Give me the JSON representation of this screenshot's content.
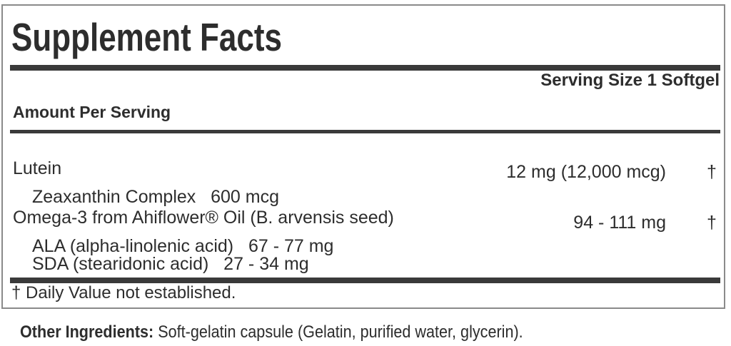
{
  "panel": {
    "title": "Supplement Facts",
    "serving_size": "Serving Size 1 Softgel",
    "amount_header": "Amount Per Serving",
    "rows": [
      {
        "name": "Lutein",
        "amount": "12 mg (12,000 mcg)",
        "dv": "†"
      },
      {
        "name": "Zeaxanthin Complex   600 mcg",
        "amount": "",
        "dv": ""
      },
      {
        "name": "Omega-3 from Ahiflower® Oil (B. arvensis seed)",
        "amount": "94 - 111 mg",
        "dv": "†"
      },
      {
        "name": "ALA (alpha-linolenic acid)   67 - 77 mg",
        "amount": "",
        "dv": ""
      },
      {
        "name": "SDA (stearidonic acid)   27 - 34 mg",
        "amount": "",
        "dv": ""
      }
    ],
    "footnote": "† Daily Value not established."
  },
  "other_ingredients": {
    "label": "Other Ingredients:",
    "text": " Soft-gelatin capsule (Gelatin, purified water, glycerin)."
  },
  "colors": {
    "text": "#2d2d2d",
    "rule": "#3a3a3a",
    "panel_border": "#8a8a8a",
    "background": "#ffffff"
  }
}
